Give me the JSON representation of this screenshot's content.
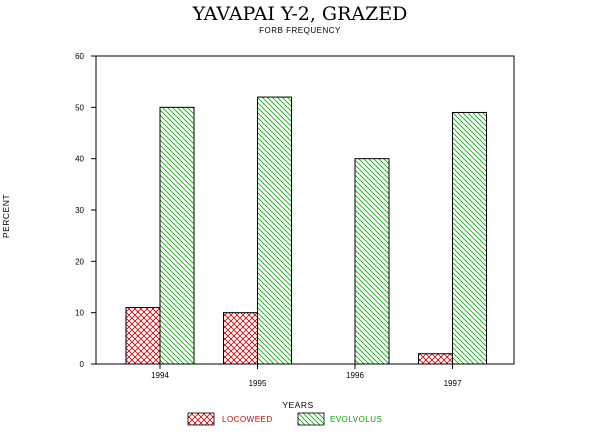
{
  "chart_data": {
    "type": "bar",
    "title": "YAVAPAI Y-2, GRAZED",
    "subtitle": "FORB FREQUENCY",
    "xlabel": "YEARS",
    "ylabel": "PERCENT",
    "categories": [
      "1994",
      "1995",
      "1996",
      "1997"
    ],
    "series": [
      {
        "name": "LOCOWEED",
        "values": [
          11,
          10,
          0,
          2
        ],
        "color": "#cc0000",
        "pattern": "crosshatch"
      },
      {
        "name": "EVOLVOLUS",
        "values": [
          50,
          52,
          40,
          49
        ],
        "color": "#00aa00",
        "pattern": "diagonal"
      }
    ],
    "ylim": [
      0,
      60
    ],
    "yticks": [
      0,
      10,
      20,
      30,
      40,
      50,
      60
    ],
    "legend_position": "bottom",
    "grid": false
  }
}
